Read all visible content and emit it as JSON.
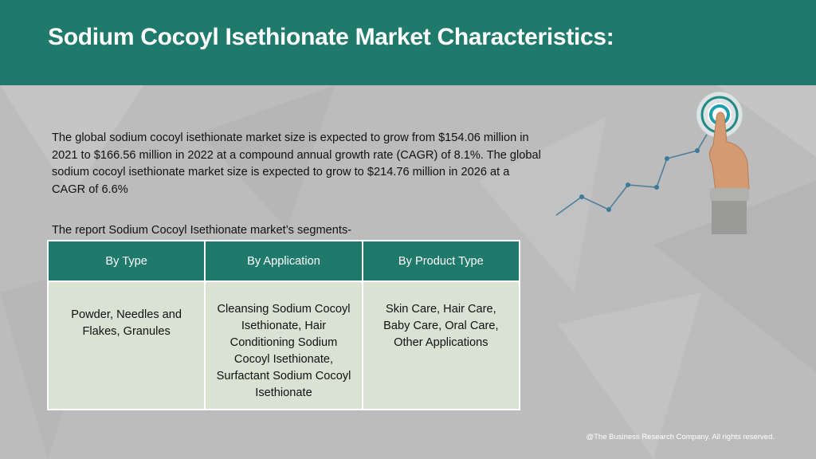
{
  "header": {
    "title": "Sodium Cocoyl Isethionate Market Characteristics:"
  },
  "intro": {
    "text": "The global sodium cocoyl isethionate market size is expected to grow from $154.06 million in 2021 to $166.56 million in 2022 at a compound annual growth rate (CAGR) of 8.1%. The global sodium cocoyl isethionate market size is expected to grow to $214.76 million in 2026 at a CAGR of 6.6%"
  },
  "segments": {
    "label": "The report Sodium Cocoyl Isethionate market’s segments-",
    "headers": [
      "By Type",
      "By Application",
      "By Product Type"
    ],
    "cells": [
      "Powder, Needles and Flakes, Granules",
      "Cleansing Sodium Cocoyl Isethionate, Hair Conditioning Sodium Cocoyl Isethionate, Surfactant Sodium Cocoyl Isethionate",
      "Skin Care, Hair Care, Baby Care, Oral Care, Other Applications"
    ]
  },
  "illustration": {
    "icon": "target-growth-chart-hand-icon",
    "accent": "#1f7a6c",
    "point_color": "#3a7a9a"
  },
  "footer": {
    "copyright": "@The Business Research Company. All rights reserved."
  }
}
